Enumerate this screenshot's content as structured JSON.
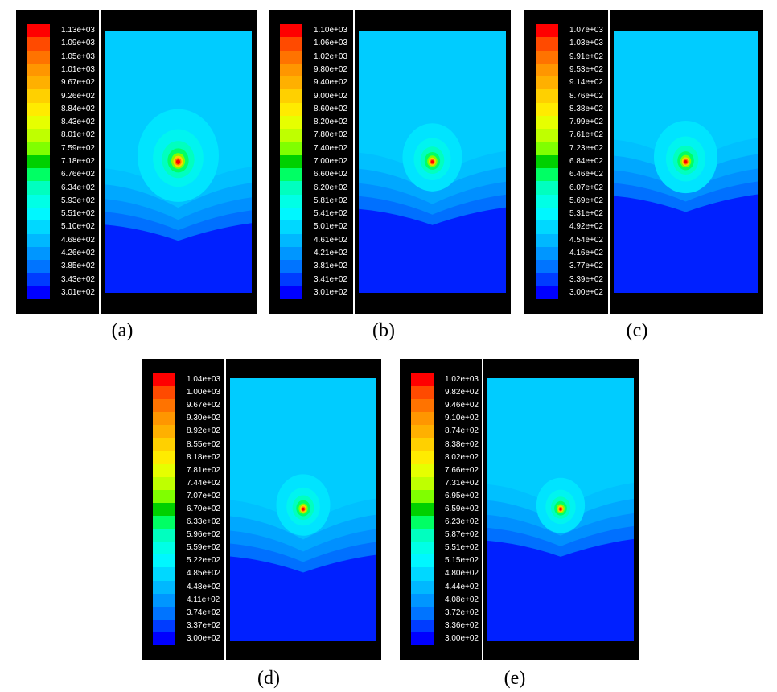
{
  "chart_data": [
    {
      "type": "heatmap",
      "panel_label": "(a)",
      "legend_ticks": [
        "1.13e+03",
        "1.09e+03",
        "1.05e+03",
        "1.01e+03",
        "9.67e+02",
        "9.26e+02",
        "8.84e+02",
        "8.43e+02",
        "8.01e+02",
        "7.59e+02",
        "7.18e+02",
        "6.76e+02",
        "6.34e+02",
        "5.93e+02",
        "5.51e+02",
        "5.10e+02",
        "4.68e+02",
        "4.26e+02",
        "3.85e+02",
        "3.43e+02",
        "3.01e+02"
      ],
      "min": 301,
      "max": 1130,
      "hotspot": {
        "x": 0.5,
        "y": 0.5
      },
      "bottom_band_level": 0.77,
      "contour_radius": 0.3
    },
    {
      "type": "heatmap",
      "panel_label": "(b)",
      "legend_ticks": [
        "1.10e+03",
        "1.06e+03",
        "1.02e+03",
        "9.80e+02",
        "9.40e+02",
        "9.00e+02",
        "8.60e+02",
        "8.20e+02",
        "7.80e+02",
        "7.40e+02",
        "7.00e+02",
        "6.60e+02",
        "6.20e+02",
        "5.81e+02",
        "5.41e+02",
        "5.01e+02",
        "4.61e+02",
        "4.21e+02",
        "3.81e+02",
        "3.41e+02",
        "3.01e+02"
      ],
      "min": 301,
      "max": 1100,
      "hotspot": {
        "x": 0.5,
        "y": 0.5
      },
      "bottom_band_level": 0.71,
      "contour_radius": 0.22
    },
    {
      "type": "heatmap",
      "panel_label": "(c)",
      "legend_ticks": [
        "1.07e+03",
        "1.03e+03",
        "9.91e+02",
        "9.53e+02",
        "9.14e+02",
        "8.76e+02",
        "8.38e+02",
        "7.99e+02",
        "7.61e+02",
        "7.23e+02",
        "6.84e+02",
        "6.46e+02",
        "6.07e+02",
        "5.69e+02",
        "5.31e+02",
        "4.92e+02",
        "4.54e+02",
        "4.16e+02",
        "3.77e+02",
        "3.39e+02",
        "3.00e+02"
      ],
      "min": 300,
      "max": 1070,
      "hotspot": {
        "x": 0.5,
        "y": 0.5
      },
      "bottom_band_level": 0.66,
      "contour_radius": 0.24
    },
    {
      "type": "heatmap",
      "panel_label": "(d)",
      "legend_ticks": [
        "1.04e+03",
        "1.00e+03",
        "9.67e+02",
        "9.30e+02",
        "8.92e+02",
        "8.55e+02",
        "8.18e+02",
        "7.81e+02",
        "7.44e+02",
        "7.07e+02",
        "6.70e+02",
        "6.33e+02",
        "5.96e+02",
        "5.59e+02",
        "5.22e+02",
        "4.85e+02",
        "4.48e+02",
        "4.11e+02",
        "3.74e+02",
        "3.37e+02",
        "3.00e+02"
      ],
      "min": 300,
      "max": 1040,
      "hotspot": {
        "x": 0.5,
        "y": 0.5
      },
      "bottom_band_level": 0.71,
      "contour_radius": 0.2
    },
    {
      "type": "heatmap",
      "panel_label": "(e)",
      "legend_ticks": [
        "1.02e+03",
        "9.82e+02",
        "9.46e+02",
        "9.10e+02",
        "8.74e+02",
        "8.38e+02",
        "8.02e+02",
        "7.66e+02",
        "7.31e+02",
        "6.95e+02",
        "6.59e+02",
        "6.23e+02",
        "5.87e+02",
        "5.51e+02",
        "5.15e+02",
        "4.80e+02",
        "4.44e+02",
        "4.08e+02",
        "3.72e+02",
        "3.36e+02",
        "3.00e+02"
      ],
      "min": 300,
      "max": 1020,
      "hotspot": {
        "x": 0.5,
        "y": 0.5
      },
      "bottom_band_level": 0.65,
      "contour_radius": 0.18
    }
  ],
  "colors": {
    "background": "#000000",
    "divider": "#ffffff",
    "legend_palette": [
      "#ff0000",
      "#ff4a00",
      "#ff7300",
      "#ff9600",
      "#ffb000",
      "#ffd000",
      "#ffeb00",
      "#e6ff00",
      "#bfff00",
      "#80ff00",
      "#00d000",
      "#00ff64",
      "#00ffbf",
      "#00ffe6",
      "#00f7ff",
      "#00d8ff",
      "#00b8ff",
      "#0096ff",
      "#0074ff",
      "#003cff",
      "#0000ff"
    ]
  }
}
